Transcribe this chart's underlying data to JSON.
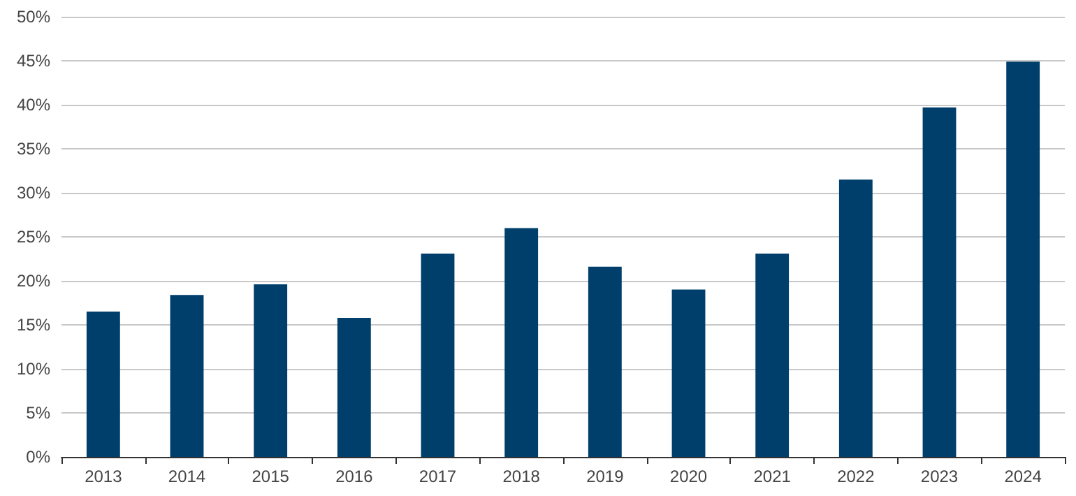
{
  "chart_data": {
    "type": "bar",
    "categories": [
      "2013",
      "2014",
      "2015",
      "2016",
      "2017",
      "2018",
      "2019",
      "2020",
      "2021",
      "2022",
      "2023",
      "2024"
    ],
    "values": [
      16.5,
      18.4,
      19.6,
      15.8,
      23.1,
      26.0,
      21.6,
      19.0,
      23.1,
      31.5,
      39.7,
      44.9
    ],
    "color": "#003e6b",
    "ylim": [
      0,
      50
    ],
    "yticks": [
      {
        "value": 0,
        "label": "0%"
      },
      {
        "value": 5,
        "label": "5%"
      },
      {
        "value": 10,
        "label": "10%"
      },
      {
        "value": 15,
        "label": "15%"
      },
      {
        "value": 20,
        "label": "20%"
      },
      {
        "value": 25,
        "label": "25%"
      },
      {
        "value": 30,
        "label": "30%"
      },
      {
        "value": 35,
        "label": "35%"
      },
      {
        "value": 40,
        "label": "40%"
      },
      {
        "value": 45,
        "label": "45%"
      },
      {
        "value": 50,
        "label": "50%"
      }
    ],
    "grid": "y"
  }
}
